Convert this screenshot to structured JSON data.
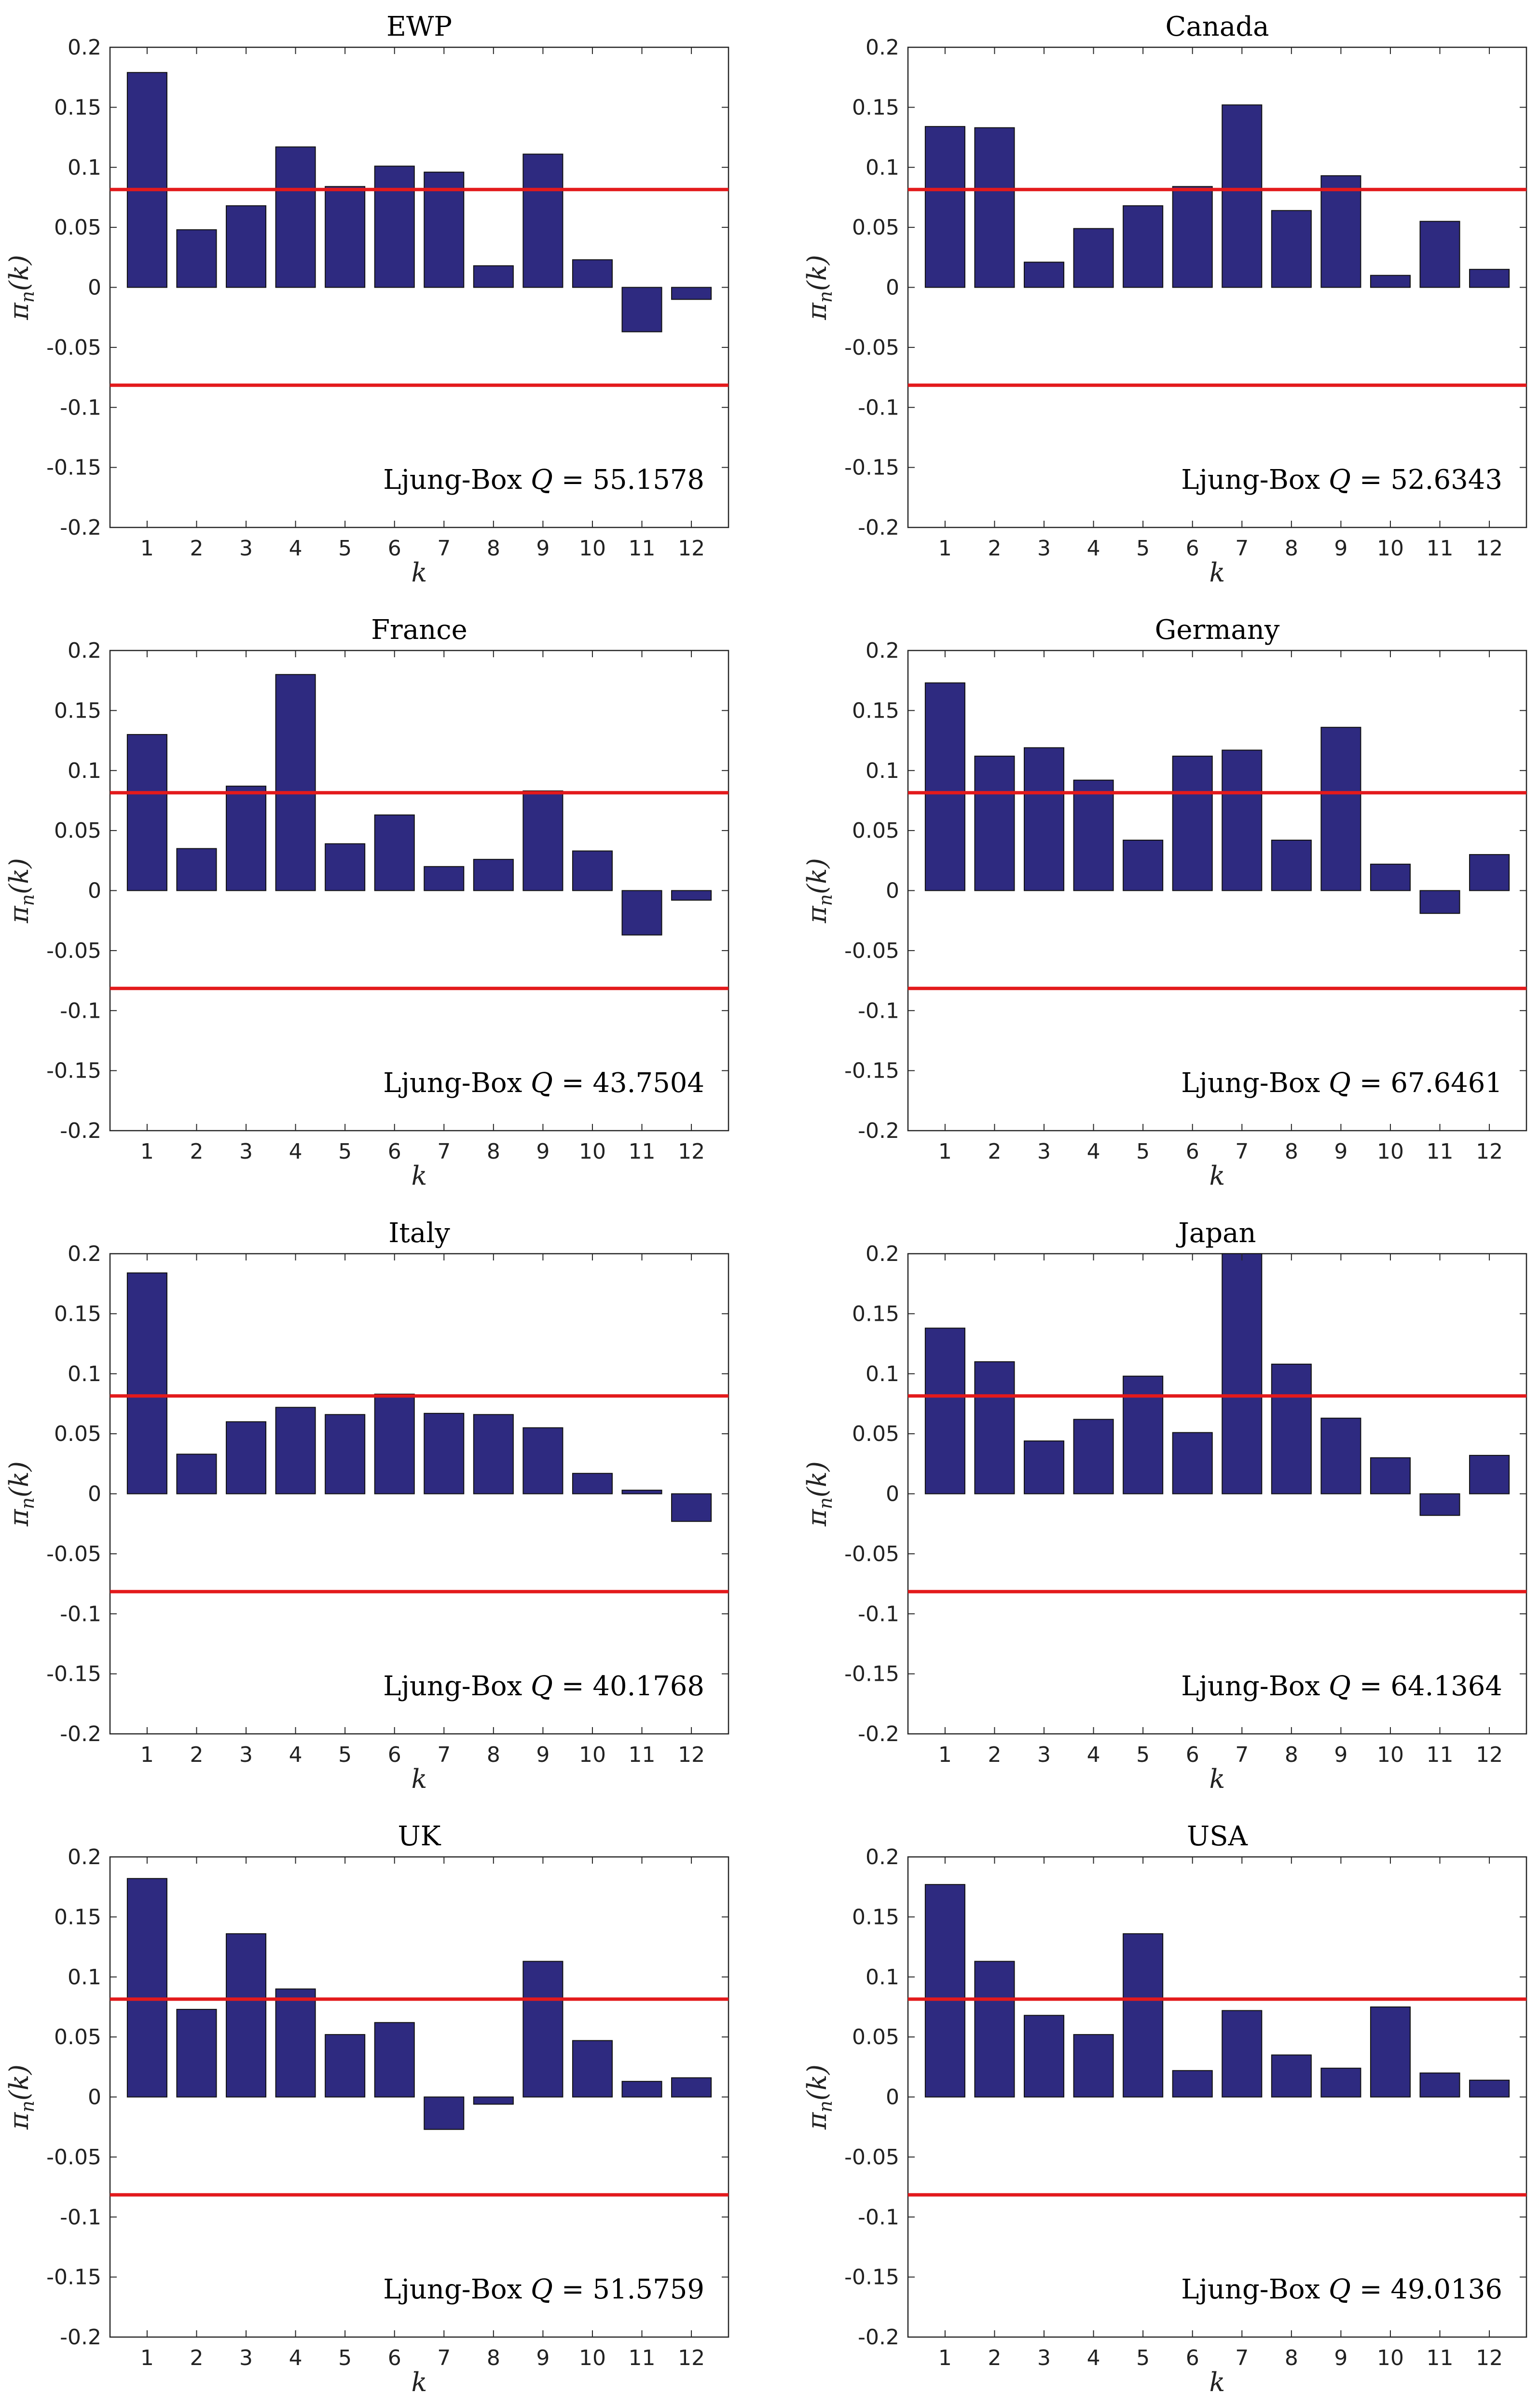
{
  "chart_data": [
    {
      "type": "bar",
      "title": "EWP",
      "categories": [
        "1",
        "2",
        "3",
        "4",
        "5",
        "6",
        "7",
        "8",
        "9",
        "10",
        "11",
        "12"
      ],
      "values": [
        0.179,
        0.048,
        0.068,
        0.117,
        0.084,
        0.101,
        0.096,
        0.018,
        0.111,
        0.023,
        -0.037,
        -0.01
      ],
      "xlabel": "k",
      "ylabel": "πn(k)",
      "ylabel_base": "π",
      "ylabel_sub": "n",
      "ylabel_arg": "(k)",
      "ylim": [
        -0.2,
        0.2
      ],
      "yticks": [
        "0.2",
        "0.15",
        "0.1",
        "0.05",
        "0",
        "-0.05",
        "-0.1",
        "-0.15",
        "-0.2"
      ],
      "confidence_bounds": [
        0.0815,
        -0.0815
      ],
      "annotation": "Ljung-Box Q = 55.1578",
      "annotation_prefix": "Ljung-Box ",
      "annotation_q": "Q",
      "annotation_value": " = 55.1578"
    },
    {
      "type": "bar",
      "title": "Canada",
      "categories": [
        "1",
        "2",
        "3",
        "4",
        "5",
        "6",
        "7",
        "8",
        "9",
        "10",
        "11",
        "12"
      ],
      "values": [
        0.134,
        0.133,
        0.021,
        0.049,
        0.068,
        0.084,
        0.152,
        0.064,
        0.093,
        0.01,
        0.055,
        0.015
      ],
      "xlabel": "k",
      "ylabel": "πn(k)",
      "ylabel_base": "π",
      "ylabel_sub": "n",
      "ylabel_arg": "(k)",
      "ylim": [
        -0.2,
        0.2
      ],
      "yticks": [
        "0.2",
        "0.15",
        "0.1",
        "0.05",
        "0",
        "-0.05",
        "-0.1",
        "-0.15",
        "-0.2"
      ],
      "confidence_bounds": [
        0.0815,
        -0.0815
      ],
      "annotation": "Ljung-Box Q = 52.6343",
      "annotation_prefix": "Ljung-Box ",
      "annotation_q": "Q",
      "annotation_value": " = 52.6343"
    },
    {
      "type": "bar",
      "title": "France",
      "categories": [
        "1",
        "2",
        "3",
        "4",
        "5",
        "6",
        "7",
        "8",
        "9",
        "10",
        "11",
        "12"
      ],
      "values": [
        0.13,
        0.035,
        0.087,
        0.18,
        0.039,
        0.063,
        0.02,
        0.026,
        0.083,
        0.033,
        -0.037,
        -0.008
      ],
      "xlabel": "k",
      "ylabel": "πn(k)",
      "ylabel_base": "π",
      "ylabel_sub": "n",
      "ylabel_arg": "(k)",
      "ylim": [
        -0.2,
        0.2
      ],
      "yticks": [
        "0.2",
        "0.15",
        "0.1",
        "0.05",
        "0",
        "-0.05",
        "-0.1",
        "-0.15",
        "-0.2"
      ],
      "confidence_bounds": [
        0.0815,
        -0.0815
      ],
      "annotation": "Ljung-Box Q = 43.7504",
      "annotation_prefix": "Ljung-Box ",
      "annotation_q": "Q",
      "annotation_value": " = 43.7504"
    },
    {
      "type": "bar",
      "title": "Germany",
      "categories": [
        "1",
        "2",
        "3",
        "4",
        "5",
        "6",
        "7",
        "8",
        "9",
        "10",
        "11",
        "12"
      ],
      "values": [
        0.173,
        0.112,
        0.119,
        0.092,
        0.042,
        0.112,
        0.117,
        0.042,
        0.136,
        0.022,
        -0.019,
        0.03
      ],
      "xlabel": "k",
      "ylabel": "πn(k)",
      "ylabel_base": "π",
      "ylabel_sub": "n",
      "ylabel_arg": "(k)",
      "ylim": [
        -0.2,
        0.2
      ],
      "yticks": [
        "0.2",
        "0.15",
        "0.1",
        "0.05",
        "0",
        "-0.05",
        "-0.1",
        "-0.15",
        "-0.2"
      ],
      "confidence_bounds": [
        0.0815,
        -0.0815
      ],
      "annotation": "Ljung-Box Q = 67.6461",
      "annotation_prefix": "Ljung-Box ",
      "annotation_q": "Q",
      "annotation_value": " = 67.6461"
    },
    {
      "type": "bar",
      "title": "Italy",
      "categories": [
        "1",
        "2",
        "3",
        "4",
        "5",
        "6",
        "7",
        "8",
        "9",
        "10",
        "11",
        "12"
      ],
      "values": [
        0.184,
        0.033,
        0.06,
        0.072,
        0.066,
        0.083,
        0.067,
        0.066,
        0.055,
        0.017,
        0.003,
        -0.023
      ],
      "xlabel": "k",
      "ylabel": "πn(k)",
      "ylabel_base": "π",
      "ylabel_sub": "n",
      "ylabel_arg": "(k)",
      "ylim": [
        -0.2,
        0.2
      ],
      "yticks": [
        "0.2",
        "0.15",
        "0.1",
        "0.05",
        "0",
        "-0.05",
        "-0.1",
        "-0.15",
        "-0.2"
      ],
      "confidence_bounds": [
        0.0815,
        -0.0815
      ],
      "annotation": "Ljung-Box Q = 40.1768",
      "annotation_prefix": "Ljung-Box ",
      "annotation_q": "Q",
      "annotation_value": " = 40.1768"
    },
    {
      "type": "bar",
      "title": "Japan",
      "categories": [
        "1",
        "2",
        "3",
        "4",
        "5",
        "6",
        "7",
        "8",
        "9",
        "10",
        "11",
        "12"
      ],
      "values": [
        0.138,
        0.11,
        0.044,
        0.062,
        0.098,
        0.051,
        0.2,
        0.108,
        0.063,
        0.03,
        -0.018,
        0.032
      ],
      "xlabel": "k",
      "ylabel": "πn(k)",
      "ylabel_base": "π",
      "ylabel_sub": "n",
      "ylabel_arg": "(k)",
      "ylim": [
        -0.2,
        0.2
      ],
      "yticks": [
        "0.2",
        "0.15",
        "0.1",
        "0.05",
        "0",
        "-0.05",
        "-0.1",
        "-0.15",
        "-0.2"
      ],
      "confidence_bounds": [
        0.0815,
        -0.0815
      ],
      "annotation": "Ljung-Box Q = 64.1364",
      "annotation_prefix": "Ljung-Box ",
      "annotation_q": "Q",
      "annotation_value": " = 64.1364"
    },
    {
      "type": "bar",
      "title": "UK",
      "categories": [
        "1",
        "2",
        "3",
        "4",
        "5",
        "6",
        "7",
        "8",
        "9",
        "10",
        "11",
        "12"
      ],
      "values": [
        0.182,
        0.073,
        0.136,
        0.09,
        0.052,
        0.062,
        -0.027,
        -0.006,
        0.113,
        0.047,
        0.013,
        0.016
      ],
      "xlabel": "k",
      "ylabel": "πn(k)",
      "ylabel_base": "π",
      "ylabel_sub": "n",
      "ylabel_arg": "(k)",
      "ylim": [
        -0.2,
        0.2
      ],
      "yticks": [
        "0.2",
        "0.15",
        "0.1",
        "0.05",
        "0",
        "-0.05",
        "-0.1",
        "-0.15",
        "-0.2"
      ],
      "confidence_bounds": [
        0.0815,
        -0.0815
      ],
      "annotation": "Ljung-Box Q = 51.5759",
      "annotation_prefix": "Ljung-Box ",
      "annotation_q": "Q",
      "annotation_value": " = 51.5759"
    },
    {
      "type": "bar",
      "title": "USA",
      "categories": [
        "1",
        "2",
        "3",
        "4",
        "5",
        "6",
        "7",
        "8",
        "9",
        "10",
        "11",
        "12"
      ],
      "values": [
        0.177,
        0.113,
        0.068,
        0.052,
        0.136,
        0.022,
        0.072,
        0.035,
        0.024,
        0.075,
        0.02,
        0.014
      ],
      "xlabel": "k",
      "ylabel": "πn(k)",
      "ylabel_base": "π",
      "ylabel_sub": "n",
      "ylabel_arg": "(k)",
      "ylim": [
        -0.2,
        0.2
      ],
      "yticks": [
        "0.2",
        "0.15",
        "0.1",
        "0.05",
        "0",
        "-0.05",
        "-0.1",
        "-0.15",
        "-0.2"
      ],
      "confidence_bounds": [
        0.0815,
        -0.0815
      ],
      "annotation": "Ljung-Box Q = 49.0136",
      "annotation_prefix": "Ljung-Box ",
      "annotation_q": "Q",
      "annotation_value": " = 49.0136"
    }
  ],
  "colors": {
    "bar_fill": "#2e2a80",
    "bar_edge": "#111111",
    "bound_line": "#e31a1c",
    "axis": "#262626"
  }
}
